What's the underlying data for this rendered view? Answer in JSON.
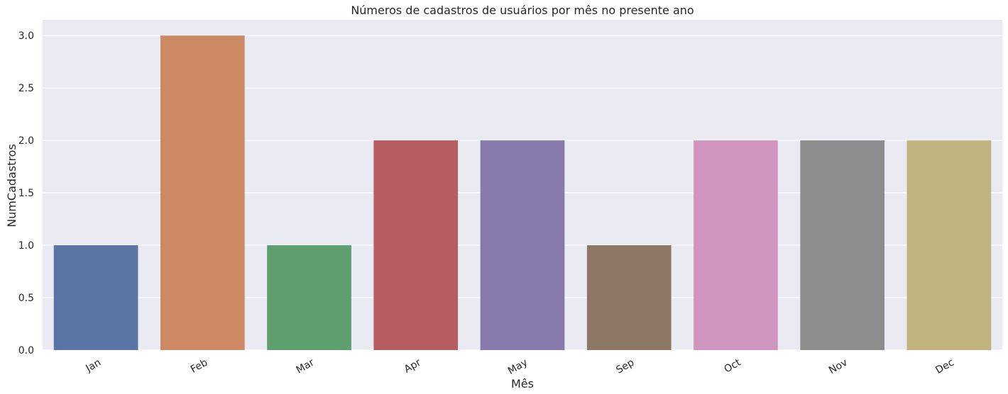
{
  "chart_data": {
    "type": "bar",
    "title": "Números de cadastros de usuários por mês no presente ano",
    "xlabel": "Mês",
    "ylabel": "NumCadastros",
    "categories": [
      "Jan",
      "Feb",
      "Mar",
      "Apr",
      "May",
      "Sep",
      "Oct",
      "Nov",
      "Dec"
    ],
    "values": [
      1,
      3,
      1,
      2,
      2,
      1,
      2,
      2,
      2
    ],
    "ylim": [
      0,
      3.15
    ],
    "yticks": [
      0.0,
      0.5,
      1.0,
      1.5,
      2.0,
      2.5,
      3.0
    ],
    "ytick_labels": [
      "0.0",
      "0.5",
      "1.0",
      "1.5",
      "2.0",
      "2.5",
      "3.0"
    ],
    "grid": "horizontal",
    "legend": "none",
    "colors": [
      "#5875a4",
      "#cc8963",
      "#5f9e6e",
      "#b55d60",
      "#857aab",
      "#8d7866",
      "#d095bf",
      "#8c8c8c",
      "#c1b37f"
    ],
    "plot_background": "#eaeaf2"
  }
}
